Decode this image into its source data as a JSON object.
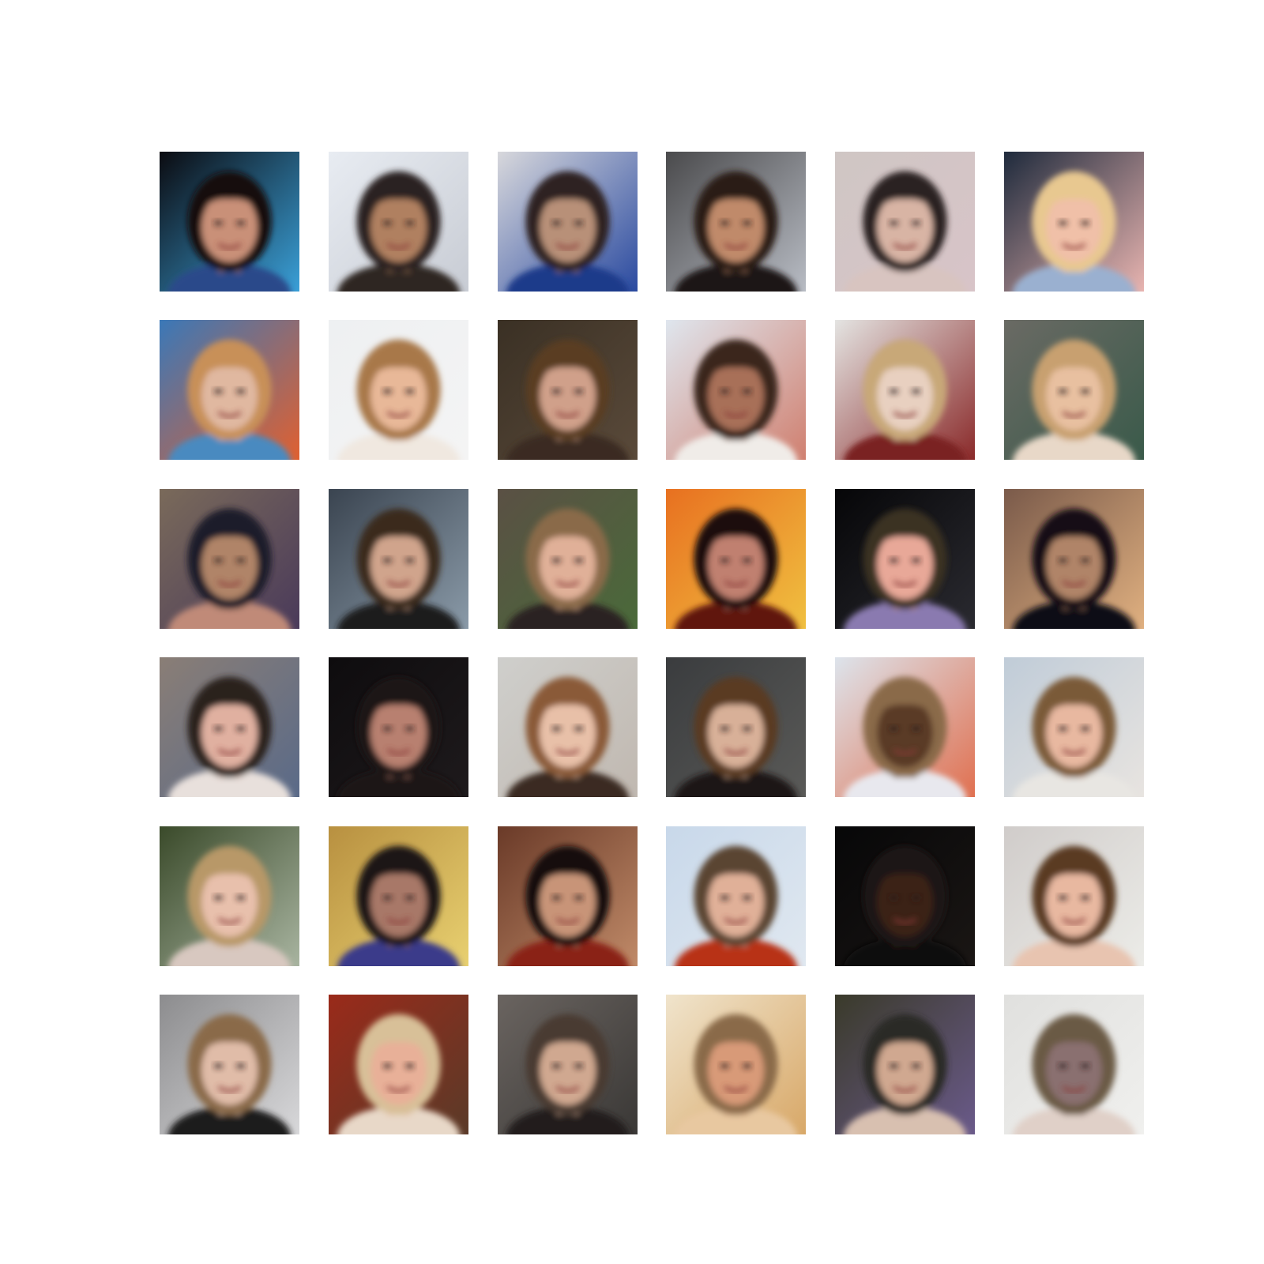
{
  "figure": {
    "rows": 6,
    "columns": 6,
    "tiles": [
      {
        "bg": "#0b0b10",
        "accent": "#3aa0d8",
        "hair": "#15110f",
        "skin": "#c99078",
        "shirt": "#2a4a8a"
      },
      {
        "bg": "#e8ecf2",
        "accent": "#c8ccd4",
        "hair": "#2a2420",
        "skin": "#b08060",
        "shirt": "#2e2622"
      },
      {
        "bg": "#d8d8dc",
        "accent": "#2a4aa0",
        "hair": "#2e2420",
        "skin": "#b89078",
        "shirt": "#1e3a8a"
      },
      {
        "bg": "#4a4a4c",
        "accent": "#b8bcc4",
        "hair": "#2a1c14",
        "skin": "#c08a6a",
        "shirt": "#1a1412"
      },
      {
        "bg": "#cfc6c4",
        "accent": "#d8c4c8",
        "hair": "#2a2224",
        "skin": "#d8b4a4",
        "shirt": "#d8c4c0"
      },
      {
        "bg": "#1e2a3c",
        "accent": "#e8b4b0",
        "hair": "#e8c890",
        "skin": "#f0c0a8",
        "shirt": "#9ab0d0"
      },
      {
        "bg": "#3a78b8",
        "accent": "#e06030",
        "hair": "#c89058",
        "skin": "#e0b8a0",
        "shirt": "#4a8ac0"
      },
      {
        "bg": "#eef0f2",
        "accent": "#f4f4f4",
        "hair": "#a87848",
        "skin": "#e8b898",
        "shirt": "#f0e8e0"
      },
      {
        "bg": "#3a3024",
        "accent": "#5a4a3a",
        "hair": "#5a3e24",
        "skin": "#d0a08a",
        "shirt": "#3a2c20"
      },
      {
        "bg": "#dfe6ee",
        "accent": "#d08070",
        "hair": "#3a281c",
        "skin": "#a87058",
        "shirt": "#f0ece8"
      },
      {
        "bg": "#e4e4e2",
        "accent": "#8a2a2a",
        "hair": "#c8a878",
        "skin": "#e8d0c0",
        "shirt": "#7a2424"
      },
      {
        "bg": "#6a6a64",
        "accent": "#3a5a4a",
        "hair": "#c8a070",
        "skin": "#e8c0a0",
        "shirt": "#e8d8c8"
      },
      {
        "bg": "#7a6a5a",
        "accent": "#4a3a5a",
        "hair": "#1e1a2a",
        "skin": "#b08468",
        "shirt": "#c08a78"
      },
      {
        "bg": "#3a4450",
        "accent": "#8a9aa8",
        "hair": "#3a2a1e",
        "skin": "#d0a48c",
        "shirt": "#1a1a1c"
      },
      {
        "bg": "#5a5044",
        "accent": "#4a6a3a",
        "hair": "#8a6a48",
        "skin": "#e0b098",
        "shirt": "#2a2420"
      },
      {
        "bg": "#e87020",
        "accent": "#f0c040",
        "hair": "#1a1010",
        "skin": "#c08070",
        "shirt": "#601810"
      },
      {
        "bg": "#060608",
        "accent": "#2a2a30",
        "hair": "#3a3024",
        "skin": "#e8a898",
        "shirt": "#8a7ab0"
      },
      {
        "bg": "#7a5a4a",
        "accent": "#e0b080",
        "hair": "#141018",
        "skin": "#b08468",
        "shirt": "#101012"
      },
      {
        "bg": "#8a7e76",
        "accent": "#5a6a88",
        "hair": "#2a201c",
        "skin": "#e0b0a0",
        "shirt": "#e8e0dc"
      },
      {
        "bg": "#0e0c0e",
        "accent": "#1e1a1c",
        "hair": "#1a1416",
        "skin": "#b88070",
        "shirt": "#1a1618"
      },
      {
        "bg": "#cfcfcc",
        "accent": "#c0b8b0",
        "hair": "#8a5a38",
        "skin": "#e8c0a8",
        "shirt": "#3a2a22"
      },
      {
        "bg": "#3a3c3e",
        "accent": "#5a5a58",
        "hair": "#5a3a24",
        "skin": "#d8b098",
        "shirt": "#1a1614"
      },
      {
        "bg": "#dde4ec",
        "accent": "#e07050",
        "hair": "#8a6a48",
        "skin": "#5a3a28",
        "shirt": "#e8e8ee"
      },
      {
        "bg": "#c0ccd8",
        "accent": "#e8e4e0",
        "hair": "#7a5a38",
        "skin": "#e8b8a0",
        "shirt": "#e8e6e2"
      },
      {
        "bg": "#3a4a2a",
        "accent": "#a8b4a0",
        "hair": "#b89868",
        "skin": "#e8c0ac",
        "shirt": "#d8c8c0"
      },
      {
        "bg": "#b89040",
        "accent": "#e8d070",
        "hair": "#1e1812",
        "skin": "#a87868",
        "shirt": "#3a3a8a"
      },
      {
        "bg": "#6a3a28",
        "accent": "#c08a68",
        "hair": "#14100e",
        "skin": "#c89478",
        "shirt": "#8a2418"
      },
      {
        "bg": "#c8d8ea",
        "accent": "#e0e8f0",
        "hair": "#5a4430",
        "skin": "#e0b098",
        "shirt": "#b83018"
      },
      {
        "bg": "#070708",
        "accent": "#1a1614",
        "hair": "#1e1612",
        "skin": "#3a2418",
        "shirt": "#0c0a0a"
      },
      {
        "bg": "#d0ccca",
        "accent": "#ecece8",
        "hair": "#5a3a22",
        "skin": "#e8b8a0",
        "shirt": "#e8c4b0"
      },
      {
        "bg": "#8c8c8e",
        "accent": "#d8d8da",
        "hair": "#8a6a48",
        "skin": "#e0bca8",
        "shirt": "#1e1a1a"
      },
      {
        "bg": "#9a2a1a",
        "accent": "#5a3a28",
        "hair": "#d8c098",
        "skin": "#e8b098",
        "shirt": "#e8d8c8"
      },
      {
        "bg": "#6a6460",
        "accent": "#3a3836",
        "hair": "#4a3a30",
        "skin": "#d0a890",
        "shirt": "#201c1c"
      },
      {
        "bg": "#f0e4cc",
        "accent": "#d8a868",
        "hair": "#8a6a48",
        "skin": "#d89a78",
        "shirt": "#e8c8a0"
      },
      {
        "bg": "#3a3a2a",
        "accent": "#6a5a8a",
        "hair": "#2a2a28",
        "skin": "#d0a890",
        "shirt": "#d8c0b0"
      },
      {
        "bg": "#e0e0de",
        "accent": "#f0f0ee",
        "hair": "#6a5a44",
        "skin": "#8a7070",
        "shirt": "#e0d0c8"
      }
    ]
  }
}
